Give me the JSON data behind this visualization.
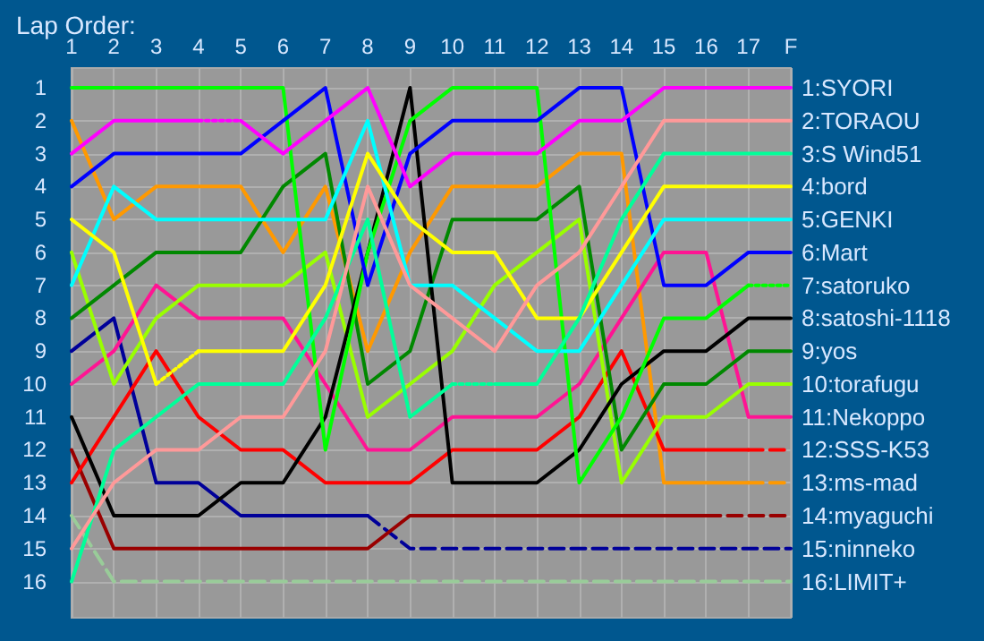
{
  "chart_data": {
    "type": "line",
    "title": "Lap Order:",
    "categories": [
      "1",
      "2",
      "3",
      "4",
      "5",
      "6",
      "7",
      "8",
      "9",
      "10",
      "11",
      "12",
      "13",
      "14",
      "15",
      "16",
      "17",
      "F"
    ],
    "ylim": [
      17.1,
      0.4
    ],
    "yticks": [
      1,
      2,
      3,
      4,
      5,
      6,
      7,
      8,
      9,
      10,
      11,
      12,
      13,
      14,
      15,
      16
    ],
    "grid": true,
    "legend": false,
    "marker": "none",
    "line_style": "solid",
    "series": [
      {
        "color": "#99cc99",
        "line_style": "dashed",
        "name": "16:LIMIT+",
        "values": [
          14,
          16,
          16,
          16,
          16,
          16,
          16,
          16,
          16,
          16,
          16,
          16,
          16,
          16,
          16,
          16,
          16,
          16
        ]
      },
      {
        "color": "#000099",
        "values": [
          9,
          8,
          13,
          13,
          14,
          14,
          14,
          14,
          null,
          null,
          null,
          null,
          null,
          null,
          null,
          null,
          null,
          null
        ]
      },
      {
        "color": "#000099",
        "line_style": "dashed",
        "name": "15:ninneko",
        "values": [
          null,
          null,
          null,
          null,
          null,
          null,
          null,
          14,
          15,
          15,
          15,
          15,
          15,
          15,
          15,
          15,
          15,
          15
        ]
      },
      {
        "color": "#990000",
        "values": [
          12,
          15,
          15,
          15,
          15,
          15,
          15,
          15,
          14,
          14,
          14,
          14,
          14,
          14,
          14,
          14,
          null,
          null
        ]
      },
      {
        "color": "#990000",
        "line_style": "dashed",
        "name": "14:myaguchi",
        "values": [
          null,
          null,
          null,
          null,
          null,
          null,
          null,
          null,
          null,
          null,
          null,
          null,
          null,
          null,
          null,
          14,
          14,
          14
        ]
      },
      {
        "color": "#ff9900",
        "values": [
          2,
          5,
          4,
          4,
          4,
          6,
          4,
          9,
          6,
          4,
          4,
          4,
          3,
          3,
          13,
          13,
          13,
          null
        ]
      },
      {
        "color": "#ff9900",
        "line_style": "dashed",
        "name": "13:ms-mad",
        "values": [
          null,
          null,
          null,
          null,
          null,
          null,
          null,
          null,
          null,
          null,
          null,
          null,
          null,
          null,
          null,
          null,
          13,
          13
        ]
      },
      {
        "color": "#ff0000",
        "values": [
          13,
          11,
          9,
          11,
          12,
          12,
          13,
          13,
          13,
          12,
          12,
          12,
          11,
          9,
          12,
          12,
          12,
          null
        ]
      },
      {
        "color": "#ff0000",
        "line_style": "dashed",
        "name": "12:SSS-K53",
        "values": [
          null,
          null,
          null,
          null,
          null,
          null,
          null,
          null,
          null,
          null,
          null,
          null,
          null,
          null,
          null,
          null,
          12,
          12
        ]
      },
      {
        "color": "#ff1493",
        "name": "11:Nekoppo",
        "values": [
          10,
          9,
          7,
          8,
          8,
          8,
          10,
          12,
          12,
          11,
          11,
          11,
          10,
          8,
          6,
          6,
          11,
          11
        ]
      },
      {
        "color": "#99ff00",
        "name": "10:torafugu",
        "values": [
          6,
          10,
          8,
          7,
          7,
          7,
          6,
          11,
          10,
          9,
          7,
          6,
          5,
          13,
          11,
          11,
          10,
          10
        ]
      },
      {
        "color": "#008800",
        "name": "9:yos",
        "values": [
          8,
          7,
          6,
          6,
          6,
          4,
          3,
          10,
          9,
          5,
          5,
          5,
          4,
          12,
          10,
          10,
          9,
          9
        ]
      },
      {
        "color": "#000000",
        "name": "8:satoshi-1118",
        "values": [
          11,
          14,
          14,
          14,
          13,
          13,
          11,
          6,
          1,
          13,
          13,
          13,
          12,
          10,
          9,
          9,
          8,
          8
        ]
      },
      {
        "color": "#00ff00",
        "values": [
          1,
          1,
          1,
          1,
          1,
          1,
          12,
          6,
          2,
          1,
          1,
          1,
          13,
          11,
          8,
          8,
          7,
          null
        ]
      },
      {
        "color": "#00ff00",
        "line_style": "dotted",
        "name": "7:satoruko",
        "values": [
          null,
          null,
          null,
          null,
          null,
          null,
          null,
          null,
          null,
          null,
          null,
          null,
          null,
          null,
          null,
          null,
          7,
          7
        ]
      },
      {
        "color": "#0000ff",
        "name": "6:Mart",
        "values": [
          4,
          3,
          3,
          3,
          3,
          2,
          1,
          7,
          3,
          2,
          2,
          2,
          1,
          1,
          7,
          7,
          6,
          6
        ]
      },
      {
        "color": "#00ffff",
        "name": "5:GENKI",
        "values": [
          7,
          4,
          5,
          5,
          5,
          5,
          5,
          2,
          7,
          7,
          8,
          9,
          9,
          7,
          5,
          5,
          5,
          5
        ]
      },
      {
        "color": "#ffff00",
        "values": [
          5,
          6,
          10,
          null,
          null,
          null,
          null,
          null,
          null,
          null,
          null,
          null,
          null,
          null,
          null,
          null,
          null,
          null
        ]
      },
      {
        "color": "#ffff00",
        "line_style": "dotted",
        "values": [
          null,
          null,
          10,
          9,
          null,
          null,
          null,
          null,
          null,
          null,
          null,
          null,
          null,
          null,
          null,
          null,
          null,
          null
        ]
      },
      {
        "color": "#ffff00",
        "name": "4:bord",
        "values": [
          null,
          null,
          null,
          9,
          9,
          9,
          7,
          3,
          5,
          6,
          6,
          8,
          8,
          6,
          4,
          4,
          4,
          4
        ]
      },
      {
        "color": "#00ff99",
        "values": [
          16,
          12,
          11,
          10,
          10,
          10,
          8,
          5,
          11,
          10,
          null,
          null,
          null,
          null,
          null,
          null,
          null,
          null
        ]
      },
      {
        "color": "#00ff99",
        "line_style": "dotted",
        "values": [
          null,
          null,
          null,
          null,
          null,
          null,
          null,
          null,
          null,
          10,
          10,
          null,
          null,
          null,
          null,
          null,
          null,
          null
        ]
      },
      {
        "color": "#00ff99",
        "name": "3:S Wind51",
        "values": [
          null,
          null,
          null,
          null,
          null,
          null,
          null,
          null,
          null,
          null,
          10,
          10,
          8,
          5,
          3,
          3,
          3,
          3
        ]
      },
      {
        "color": "#ff9999",
        "name": "2:TORAOU",
        "values": [
          15,
          13,
          12,
          12,
          11,
          11,
          9,
          4,
          7,
          8,
          9,
          7,
          6,
          4,
          2,
          2,
          2,
          2
        ]
      },
      {
        "color": "#ff00ff",
        "values": [
          3,
          2,
          2,
          2,
          null,
          null,
          null,
          null,
          null,
          null,
          null,
          null,
          null,
          null,
          null,
          null,
          null,
          null
        ]
      },
      {
        "color": "#ff00ff",
        "line_style": "dotted",
        "values": [
          null,
          null,
          null,
          2,
          2,
          null,
          null,
          null,
          null,
          null,
          null,
          null,
          null,
          null,
          null,
          null,
          null,
          null
        ]
      },
      {
        "color": "#ff00ff",
        "name": "1:SYORI",
        "values": [
          null,
          null,
          null,
          null,
          2,
          3,
          2,
          1,
          4,
          3,
          3,
          3,
          2,
          2,
          1,
          1,
          1,
          1
        ]
      }
    ]
  }
}
